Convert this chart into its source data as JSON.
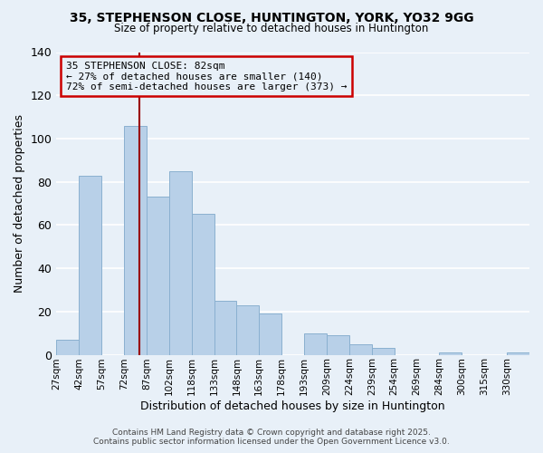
{
  "title1": "35, STEPHENSON CLOSE, HUNTINGTON, YORK, YO32 9GG",
  "title2": "Size of property relative to detached houses in Huntington",
  "xlabel": "Distribution of detached houses by size in Huntington",
  "ylabel": "Number of detached properties",
  "footer1": "Contains HM Land Registry data © Crown copyright and database right 2025.",
  "footer2": "Contains public sector information licensed under the Open Government Licence v3.0.",
  "bar_labels": [
    "27sqm",
    "42sqm",
    "57sqm",
    "72sqm",
    "87sqm",
    "102sqm",
    "118sqm",
    "133sqm",
    "148sqm",
    "163sqm",
    "178sqm",
    "193sqm",
    "209sqm",
    "224sqm",
    "239sqm",
    "254sqm",
    "269sqm",
    "284sqm",
    "300sqm",
    "315sqm",
    "330sqm"
  ],
  "bar_values": [
    7,
    83,
    0,
    106,
    73,
    85,
    65,
    25,
    23,
    19,
    0,
    10,
    9,
    5,
    3,
    0,
    0,
    1,
    0,
    0,
    1
  ],
  "bar_color": "#b8d0e8",
  "bar_edgecolor": "#8ab0d0",
  "bg_color": "#e8f0f8",
  "grid_color": "#ffffff",
  "vline_color": "#990000",
  "annotation_text": "35 STEPHENSON CLOSE: 82sqm\n← 27% of detached houses are smaller (140)\n72% of semi-detached houses are larger (373) →",
  "annotation_box_facecolor": "#e8f0f8",
  "annotation_box_edgecolor": "#cc0000",
  "ylim": [
    0,
    140
  ],
  "yticks": [
    0,
    20,
    40,
    60,
    80,
    100,
    120,
    140
  ]
}
